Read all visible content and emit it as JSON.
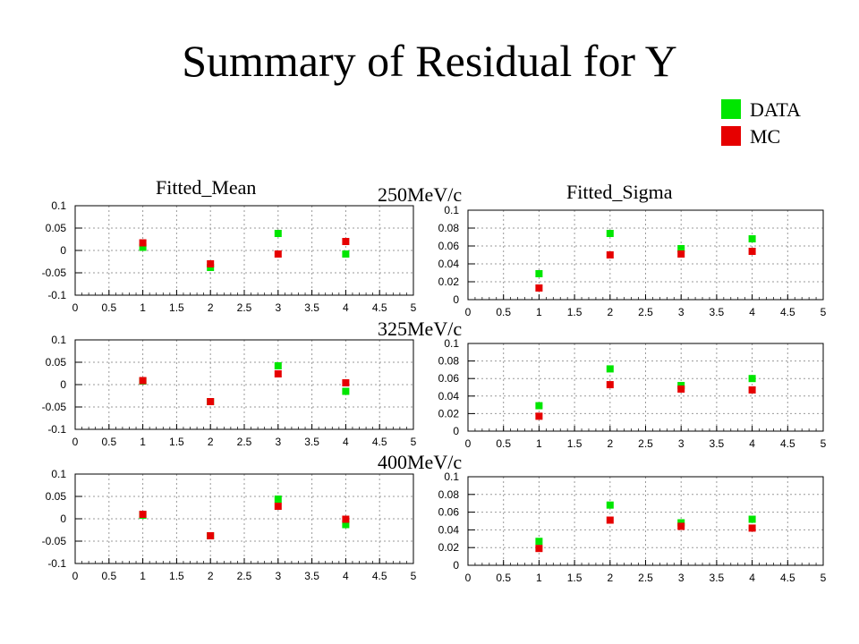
{
  "title": "Summary of Residual for Y",
  "legend": [
    {
      "label": "DATA",
      "color": "#00e600"
    },
    {
      "label": "MC",
      "color": "#e60000"
    }
  ],
  "column_titles": {
    "mean": "Fitted_Mean",
    "sigma": "Fitted_Sigma"
  },
  "momentum_labels": [
    "250MeV/c",
    "325MeV/c",
    "400MeV/c"
  ],
  "chart_data": [
    {
      "type": "scatter",
      "row": 0,
      "col": 0,
      "xlim": [
        0,
        5
      ],
      "ylim": [
        -0.1,
        0.1
      ],
      "grid": true,
      "xticks": [
        "0",
        "0.5",
        "1",
        "1.5",
        "2",
        "2.5",
        "3",
        "3.5",
        "4",
        "4.5",
        "5"
      ],
      "yticks": [
        "0.1",
        "0.05",
        "0",
        "-0.05",
        "-0.1"
      ],
      "series": [
        {
          "name": "DATA",
          "x": [
            1,
            2,
            3,
            4
          ],
          "y": [
            0.007,
            -0.038,
            0.038,
            -0.008
          ]
        },
        {
          "name": "MC",
          "x": [
            1,
            2,
            3,
            4
          ],
          "y": [
            0.017,
            -0.03,
            -0.008,
            0.02
          ]
        }
      ]
    },
    {
      "type": "scatter",
      "row": 0,
      "col": 1,
      "xlim": [
        0,
        5
      ],
      "ylim": [
        0,
        0.1
      ],
      "grid": true,
      "xticks": [
        "0",
        "0.5",
        "1",
        "1.5",
        "2",
        "2.5",
        "3",
        "3.5",
        "4",
        "4.5",
        "5"
      ],
      "yticks": [
        "0.1",
        "0.08",
        "0.06",
        "0.04",
        "0.02",
        "0"
      ],
      "series": [
        {
          "name": "DATA",
          "x": [
            1,
            2,
            3,
            4
          ],
          "y": [
            0.029,
            0.074,
            0.057,
            0.068
          ]
        },
        {
          "name": "MC",
          "x": [
            1,
            2,
            3,
            4
          ],
          "y": [
            0.013,
            0.05,
            0.051,
            0.054
          ]
        }
      ]
    },
    {
      "type": "scatter",
      "row": 1,
      "col": 0,
      "xlim": [
        0,
        5
      ],
      "ylim": [
        -0.1,
        0.1
      ],
      "grid": true,
      "xticks": [
        "0",
        "0.5",
        "1",
        "1.5",
        "2",
        "2.5",
        "3",
        "3.5",
        "4",
        "4.5",
        "5"
      ],
      "yticks": [
        "0.1",
        "0.05",
        "0",
        "-0.05",
        "-0.1"
      ],
      "series": [
        {
          "name": "DATA",
          "x": [
            1,
            2,
            3,
            4
          ],
          "y": [
            0.008,
            -0.038,
            0.042,
            -0.015
          ]
        },
        {
          "name": "MC",
          "x": [
            1,
            2,
            3,
            4
          ],
          "y": [
            0.009,
            -0.038,
            0.024,
            0.004
          ]
        }
      ]
    },
    {
      "type": "scatter",
      "row": 1,
      "col": 1,
      "xlim": [
        0,
        5
      ],
      "ylim": [
        0,
        0.1
      ],
      "grid": true,
      "xticks": [
        "0",
        "0.5",
        "1",
        "1.5",
        "2",
        "2.5",
        "3",
        "3.5",
        "4",
        "4.5",
        "5"
      ],
      "yticks": [
        "0.1",
        "0.08",
        "0.06",
        "0.04",
        "0.02",
        "0"
      ],
      "series": [
        {
          "name": "DATA",
          "x": [
            1,
            2,
            3,
            4
          ],
          "y": [
            0.029,
            0.071,
            0.052,
            0.06
          ]
        },
        {
          "name": "MC",
          "x": [
            1,
            2,
            3,
            4
          ],
          "y": [
            0.017,
            0.053,
            0.048,
            0.047
          ]
        }
      ]
    },
    {
      "type": "scatter",
      "row": 2,
      "col": 0,
      "xlim": [
        0,
        5
      ],
      "ylim": [
        -0.1,
        0.1
      ],
      "grid": true,
      "xticks": [
        "0",
        "0.5",
        "1",
        "1.5",
        "2",
        "2.5",
        "3",
        "3.5",
        "4",
        "4.5",
        "5"
      ],
      "yticks": [
        "0.1",
        "0.05",
        "0",
        "-0.05",
        "-0.1"
      ],
      "series": [
        {
          "name": "DATA",
          "x": [
            1,
            2,
            3,
            4
          ],
          "y": [
            0.008,
            -0.038,
            0.044,
            -0.013
          ]
        },
        {
          "name": "MC",
          "x": [
            1,
            2,
            3,
            4
          ],
          "y": [
            0.01,
            -0.038,
            0.028,
            -0.001
          ]
        }
      ]
    },
    {
      "type": "scatter",
      "row": 2,
      "col": 1,
      "xlim": [
        0,
        5
      ],
      "ylim": [
        0,
        0.1
      ],
      "grid": true,
      "xticks": [
        "0",
        "0.5",
        "1",
        "1.5",
        "2",
        "2.5",
        "3",
        "3.5",
        "4",
        "4.5",
        "5"
      ],
      "yticks": [
        "0.1",
        "0.08",
        "0.06",
        "0.04",
        "0.02",
        "0"
      ],
      "series": [
        {
          "name": "DATA",
          "x": [
            1,
            2,
            3,
            4
          ],
          "y": [
            0.027,
            0.068,
            0.048,
            0.052
          ]
        },
        {
          "name": "MC",
          "x": [
            1,
            2,
            3,
            4
          ],
          "y": [
            0.019,
            0.051,
            0.044,
            0.042
          ]
        }
      ]
    }
  ]
}
